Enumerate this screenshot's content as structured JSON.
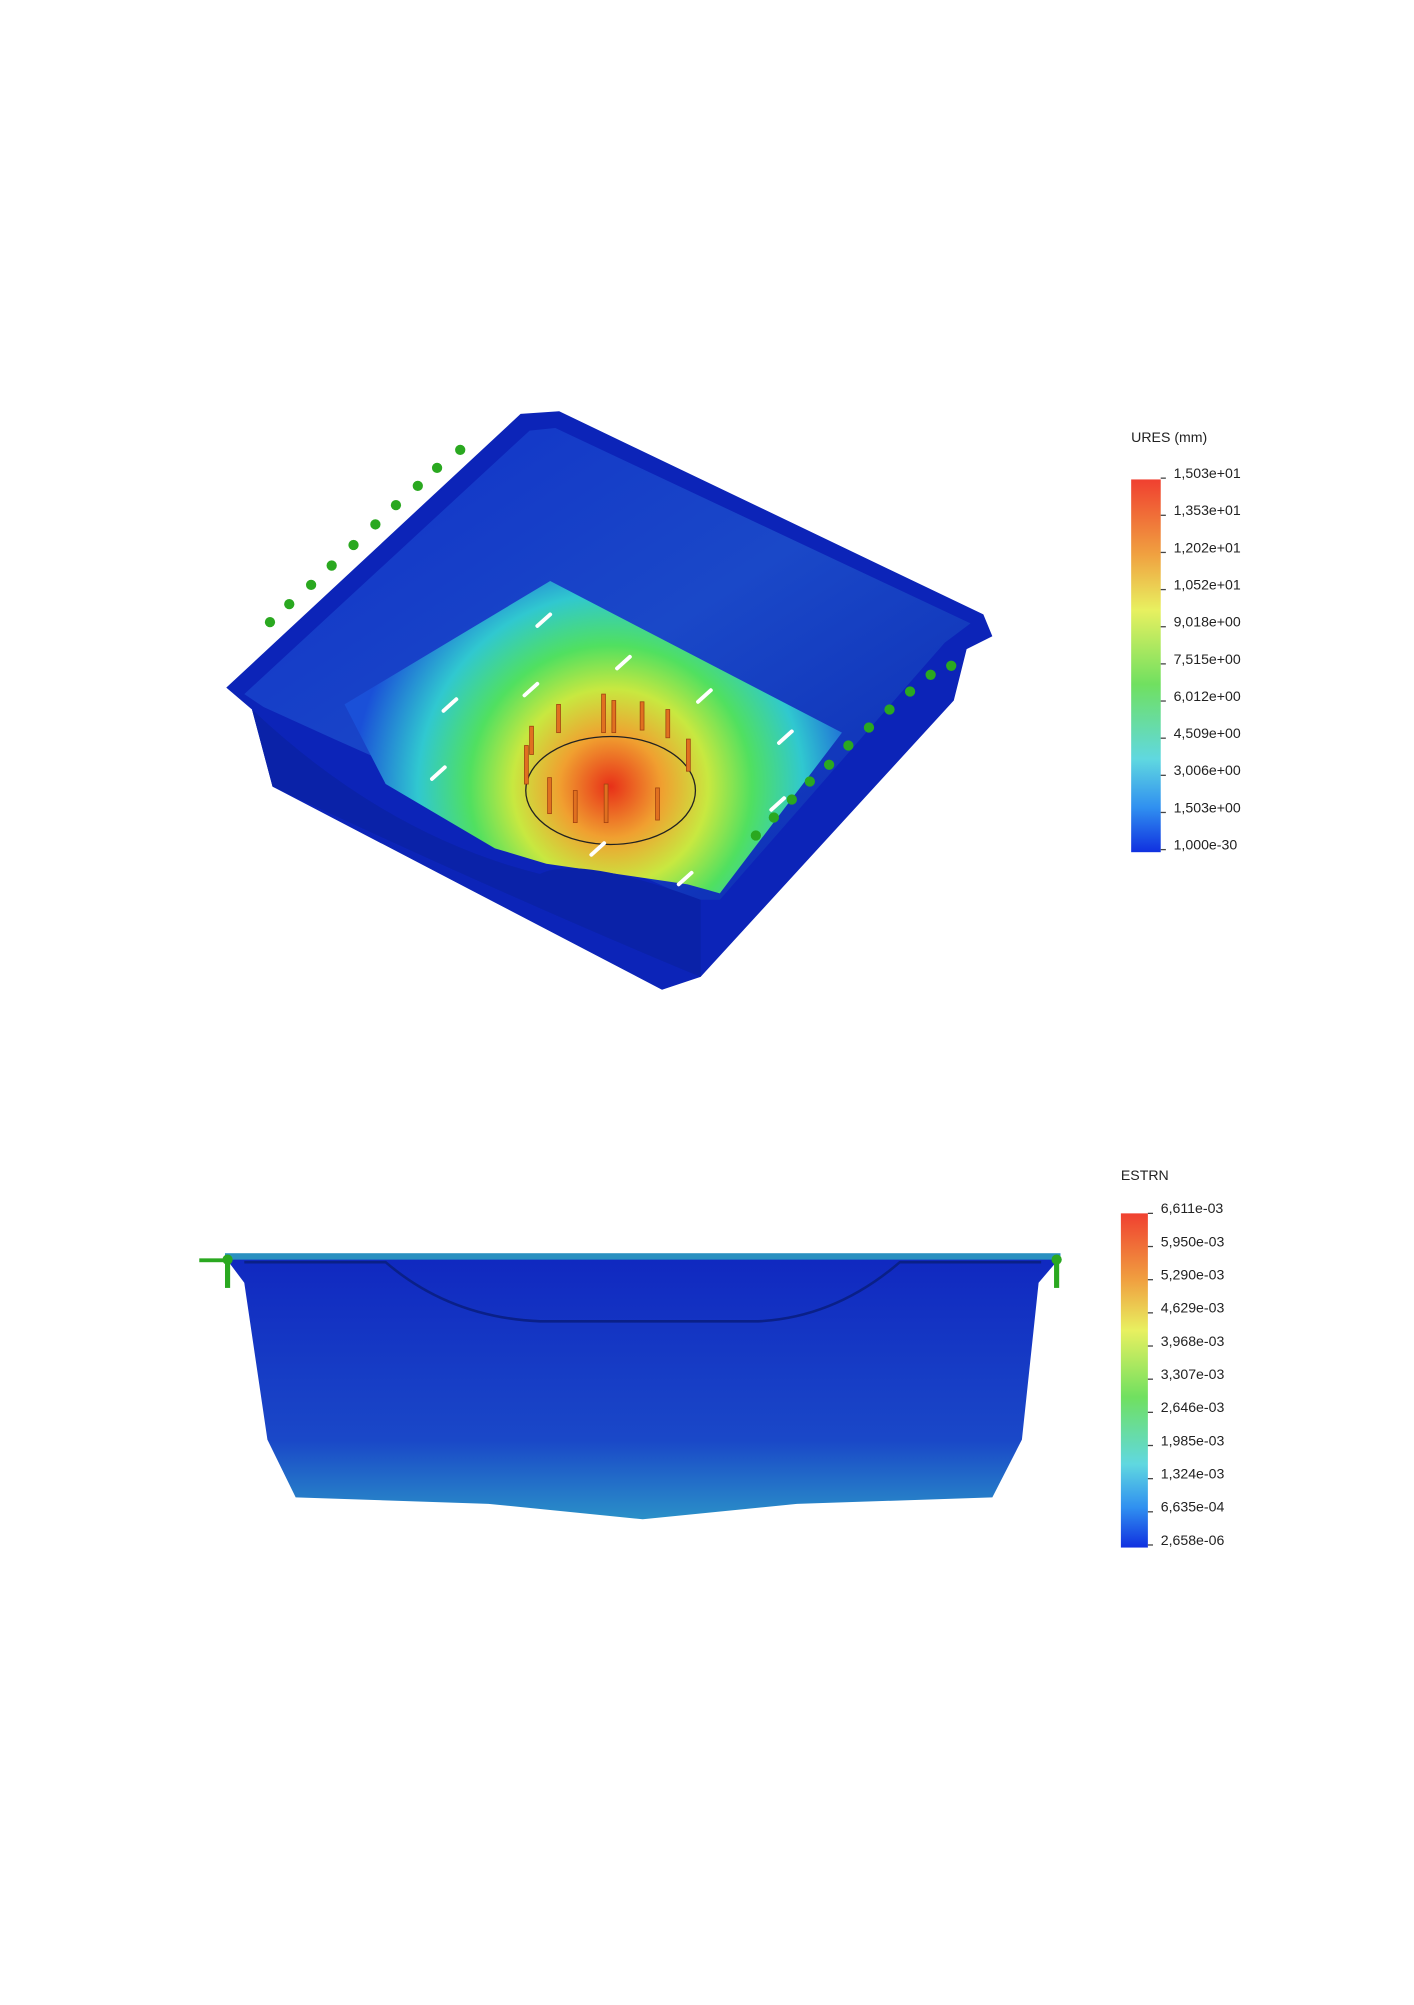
{
  "figures": [
    {
      "legend": {
        "title": "URES (mm)",
        "labels": [
          "1,503e+01",
          "1,353e+01",
          "1,202e+01",
          "1,052e+01",
          "9,018e+00",
          "7,515e+00",
          "6,012e+00",
          "4,509e+00",
          "3,006e+00",
          "1,503e+00",
          "1,000e-30"
        ]
      }
    },
    {
      "legend": {
        "title": "ESTRN",
        "labels": [
          "6,611e-03",
          "5,950e-03",
          "5,290e-03",
          "4,629e-03",
          "3,968e-03",
          "3,307e-03",
          "2,646e-03",
          "1,985e-03",
          "1,324e-03",
          "6,635e-04",
          "2,658e-06"
        ]
      }
    }
  ]
}
